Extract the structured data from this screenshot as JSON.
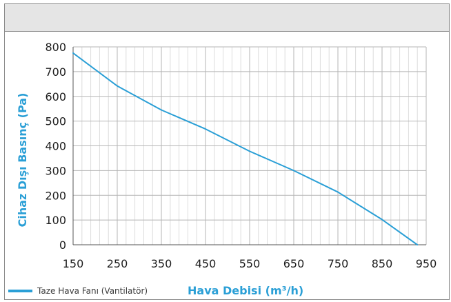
{
  "chart_data": {
    "type": "line",
    "xlabel": "Hava Debisi (m³/h)",
    "ylabel": "Cihaz  Dışı Basınç (Pa)",
    "x_ticks": [
      150,
      250,
      350,
      450,
      550,
      650,
      750,
      850,
      950
    ],
    "y_ticks": [
      0,
      100,
      200,
      300,
      400,
      500,
      600,
      700,
      800
    ],
    "xlim": [
      150,
      950
    ],
    "ylim": [
      0,
      800
    ],
    "grid": true,
    "legend_position": "bottom-left",
    "series": [
      {
        "name": "Taze Hava Fanı (Vantilatör)",
        "color": "#2a9fd6",
        "x": [
          150,
          250,
          350,
          450,
          550,
          650,
          750,
          850,
          930
        ],
        "y": [
          775,
          642,
          545,
          468,
          378,
          300,
          213,
          102,
          0
        ]
      }
    ]
  }
}
